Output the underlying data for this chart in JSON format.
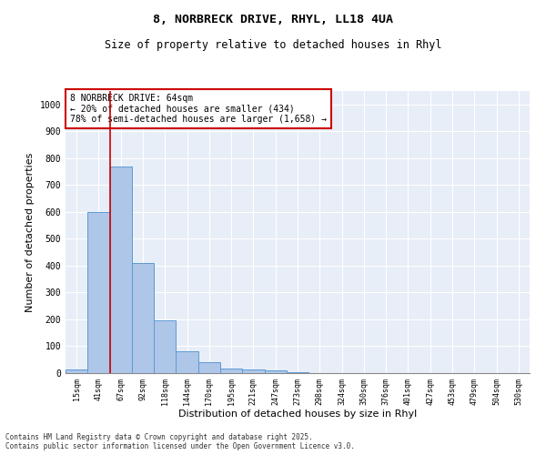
{
  "title_line1": "8, NORBRECK DRIVE, RHYL, LL18 4UA",
  "title_line2": "Size of property relative to detached houses in Rhyl",
  "xlabel": "Distribution of detached houses by size in Rhyl",
  "ylabel": "Number of detached properties",
  "categories": [
    "15sqm",
    "41sqm",
    "67sqm",
    "92sqm",
    "118sqm",
    "144sqm",
    "170sqm",
    "195sqm",
    "221sqm",
    "247sqm",
    "273sqm",
    "298sqm",
    "324sqm",
    "350sqm",
    "376sqm",
    "401sqm",
    "427sqm",
    "453sqm",
    "479sqm",
    "504sqm",
    "530sqm"
  ],
  "values": [
    15,
    600,
    770,
    410,
    195,
    80,
    40,
    18,
    15,
    10,
    3,
    0,
    0,
    0,
    0,
    0,
    0,
    0,
    0,
    0,
    0
  ],
  "bar_color": "#aec6e8",
  "bar_edge_color": "#5b9bd5",
  "vline_x": 1.5,
  "vline_color": "#cc0000",
  "annotation_title": "8 NORBRECK DRIVE: 64sqm",
  "annotation_line2": "← 20% of detached houses are smaller (434)",
  "annotation_line3": "78% of semi-detached houses are larger (1,658) →",
  "annotation_box_color": "#cc0000",
  "ylim": [
    0,
    1050
  ],
  "yticks": [
    0,
    100,
    200,
    300,
    400,
    500,
    600,
    700,
    800,
    900,
    1000
  ],
  "bg_color": "#e8eef7",
  "footer_line1": "Contains HM Land Registry data © Crown copyright and database right 2025.",
  "footer_line2": "Contains public sector information licensed under the Open Government Licence v3.0."
}
